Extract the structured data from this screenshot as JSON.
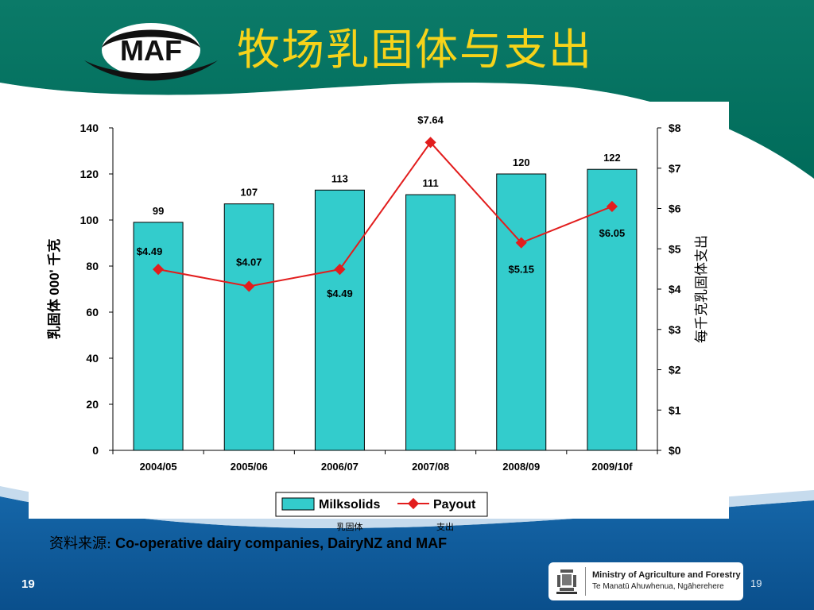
{
  "slide": {
    "title": "牧场乳固体与支出",
    "source_prefix": "资料来源:",
    "source_text": " Co-operative dairy companies, DairyNZ and MAF",
    "page_number_left": "19",
    "page_number_right": "19"
  },
  "logo": {
    "text": "MAF"
  },
  "ministry_badge": {
    "name": "Ministry of Agriculture and Forestry",
    "maori_name": "Te Manatū Ahuwhenua, Ngāherehere"
  },
  "colors": {
    "header_teal": "#00705f",
    "footer_blue": "#0a5594",
    "title_yellow": "#f7d31a",
    "bar_fill": "#33cccc",
    "line_red": "#e21d1d"
  },
  "chart_data": {
    "type": "bar",
    "categories": [
      "2004/05",
      "2005/06",
      "2006/07",
      "2007/08",
      "2008/09",
      "2009/10f"
    ],
    "series": [
      {
        "name": "Milksolids",
        "type": "bar",
        "axis": "left",
        "values": [
          99,
          107,
          113,
          111,
          120,
          122
        ],
        "labels": [
          "99",
          "107",
          "113",
          "111",
          "120",
          "122"
        ]
      },
      {
        "name": "Payout",
        "type": "line",
        "axis": "right",
        "values": [
          4.49,
          4.07,
          4.49,
          7.64,
          5.15,
          6.05
        ],
        "labels": [
          "$4.49",
          "$4.07",
          "$4.49",
          "$7.64",
          "$5.15",
          "$6.05"
        ]
      }
    ],
    "ylabel": "乳固体 000' 千克",
    "ylabel2": "每千克乳固体支出",
    "ylim": [
      0,
      140
    ],
    "ylim2": [
      0,
      8
    ],
    "yticks": [
      "0",
      "20",
      "40",
      "60",
      "80",
      "100",
      "120",
      "140"
    ],
    "yticks2": [
      "$0",
      "$1",
      "$2",
      "$3",
      "$4",
      "$5",
      "$6",
      "$7",
      "$8"
    ],
    "legend": {
      "position": "bottom",
      "entries": [
        "Milksolids",
        "Payout"
      ],
      "captions": [
        "乳固体",
        "支出"
      ]
    },
    "grid": false
  }
}
